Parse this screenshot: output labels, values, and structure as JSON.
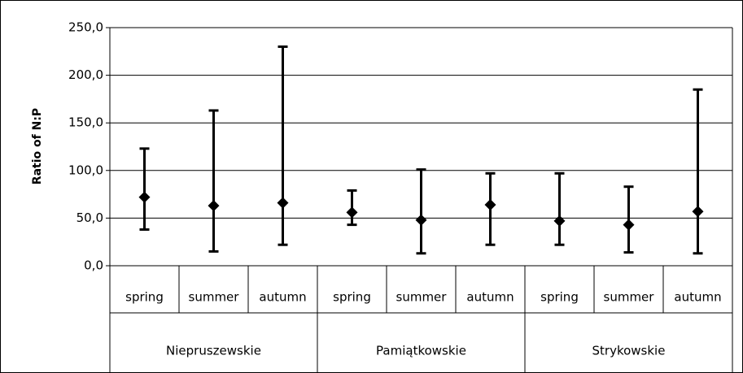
{
  "chart_data": {
    "type": "range",
    "y_label": "Ratio of N:P",
    "groups": [
      {
        "name": "Niepruszewskie",
        "categories": [
          "spring",
          "summer",
          "autumn"
        ]
      },
      {
        "name": "Pamiątkowskie",
        "categories": [
          "spring",
          "summer",
          "autumn"
        ]
      },
      {
        "name": "Strykowskie",
        "categories": [
          "spring",
          "summer",
          "autumn"
        ]
      }
    ],
    "values": [
      72,
      63,
      66,
      56,
      48,
      64,
      47,
      43,
      57
    ],
    "low": [
      38,
      15,
      22,
      43,
      13,
      22,
      22,
      14,
      13
    ],
    "high": [
      123,
      163,
      230,
      79,
      101,
      97,
      97,
      83,
      185
    ],
    "color": "#000000",
    "ylim": [
      0,
      250
    ],
    "yticks": [
      {
        "value": 0,
        "label": "0,0"
      },
      {
        "value": 50,
        "label": "50,0"
      },
      {
        "value": 100,
        "label": "100,0"
      },
      {
        "value": 150,
        "label": "150,0"
      },
      {
        "value": 200,
        "label": "200,0"
      },
      {
        "value": 250,
        "label": "250,0"
      }
    ],
    "grid": true
  }
}
